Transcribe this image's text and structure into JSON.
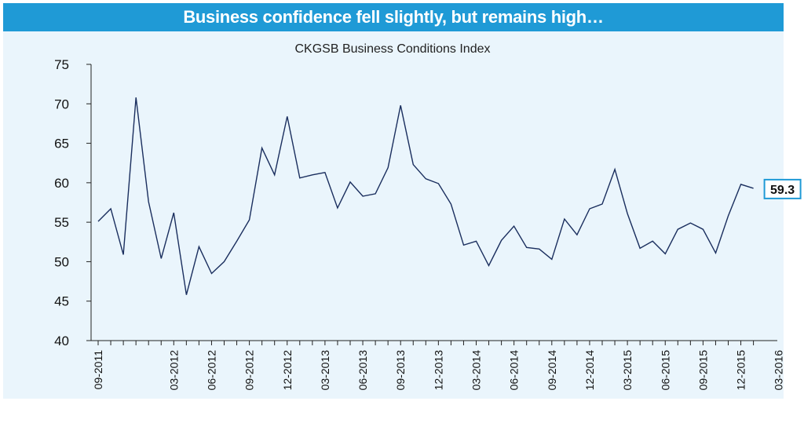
{
  "banner": {
    "title": "Business confidence fell slightly, but remains high…"
  },
  "chart_data": {
    "type": "line",
    "title": "CKGSB Business Conditions Index",
    "xlabel": "",
    "ylabel": "",
    "ylim": [
      40,
      75
    ],
    "y_ticks": [
      40,
      45,
      50,
      55,
      60,
      65,
      70,
      75
    ],
    "x_tick_labels": [
      "09-2011",
      "03-2012",
      "06-2012",
      "09-2012",
      "12-2012",
      "03-2013",
      "06-2013",
      "09-2013",
      "12-2013",
      "03-2014",
      "06-2014",
      "09-2014",
      "12-2014",
      "03-2015",
      "06-2015",
      "09-2015",
      "12-2015",
      "03-2016"
    ],
    "x_tick_months": [
      0,
      6,
      9,
      12,
      15,
      18,
      21,
      24,
      27,
      30,
      33,
      36,
      39,
      42,
      45,
      48,
      51,
      54
    ],
    "grid": false,
    "legend": "none",
    "line_color": "#1a2e5e",
    "series": [
      {
        "values": [
          55.1,
          56.7,
          50.9,
          70.8,
          57.6,
          50.4,
          56.2,
          45.8,
          51.9,
          48.5,
          50.0,
          52.6,
          55.3,
          64.4,
          61.0,
          68.4,
          60.6,
          61.0,
          61.3,
          56.8,
          60.1,
          58.3,
          58.6,
          61.9,
          69.8,
          62.3,
          60.5,
          59.9,
          57.3,
          52.1,
          52.6,
          49.5,
          52.7,
          54.5,
          51.8,
          51.6,
          50.3,
          55.4,
          53.4,
          56.7,
          57.3,
          61.7,
          56.1,
          51.7,
          52.6,
          51.0,
          54.1,
          54.9,
          54.1,
          51.1,
          55.8,
          59.8,
          59.3
        ]
      }
    ],
    "annotation": {
      "label": "59.3",
      "value": 59.3,
      "border_color": "#1f9ad6"
    }
  }
}
